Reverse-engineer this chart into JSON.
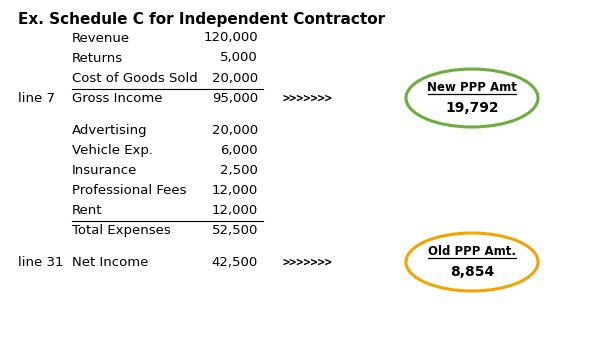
{
  "title": "Ex. Schedule C for Independent Contractor",
  "title_fontsize": 11,
  "title_fontweight": "bold",
  "bg_color": "#ffffff",
  "text_color": "#000000",
  "new_ppp_label": "New PPP Amt",
  "new_ppp_value": "19,792",
  "new_ppp_circle_color": "#6aaf3d",
  "old_ppp_label": "Old PPP Amt.",
  "old_ppp_value": "8,854",
  "old_ppp_circle_color": "#f0a500",
  "arrow_text": ">>>>>>>",
  "arrow_color": "#000000",
  "rows": [
    {
      "label": "Revenue",
      "value": "120,000",
      "underline": false,
      "line_label": ""
    },
    {
      "label": "Returns",
      "value": "5,000",
      "underline": false,
      "line_label": ""
    },
    {
      "label": "Cost of Goods Sold",
      "value": "20,000",
      "underline": true,
      "line_label": ""
    },
    {
      "label": "Gross Income",
      "value": "95,000",
      "underline": false,
      "line_label": "line 7",
      "arrow": true,
      "circle": "new"
    },
    {
      "label": "",
      "value": "",
      "underline": false,
      "line_label": ""
    },
    {
      "label": "Advertising",
      "value": "20,000",
      "underline": false,
      "line_label": ""
    },
    {
      "label": "Vehicle Exp.",
      "value": "6,000",
      "underline": false,
      "line_label": ""
    },
    {
      "label": "Insurance",
      "value": "2,500",
      "underline": false,
      "line_label": ""
    },
    {
      "label": "Professional Fees",
      "value": "12,000",
      "underline": false,
      "line_label": ""
    },
    {
      "label": "Rent",
      "value": "12,000",
      "underline": true,
      "line_label": ""
    },
    {
      "label": "Total Expenses",
      "value": "52,500",
      "underline": false,
      "line_label": ""
    },
    {
      "label": "",
      "value": "",
      "underline": false,
      "line_label": ""
    },
    {
      "label": "Net Income",
      "value": "42,500",
      "underline": false,
      "line_label": "line 31",
      "arrow": true,
      "circle": "old"
    }
  ]
}
